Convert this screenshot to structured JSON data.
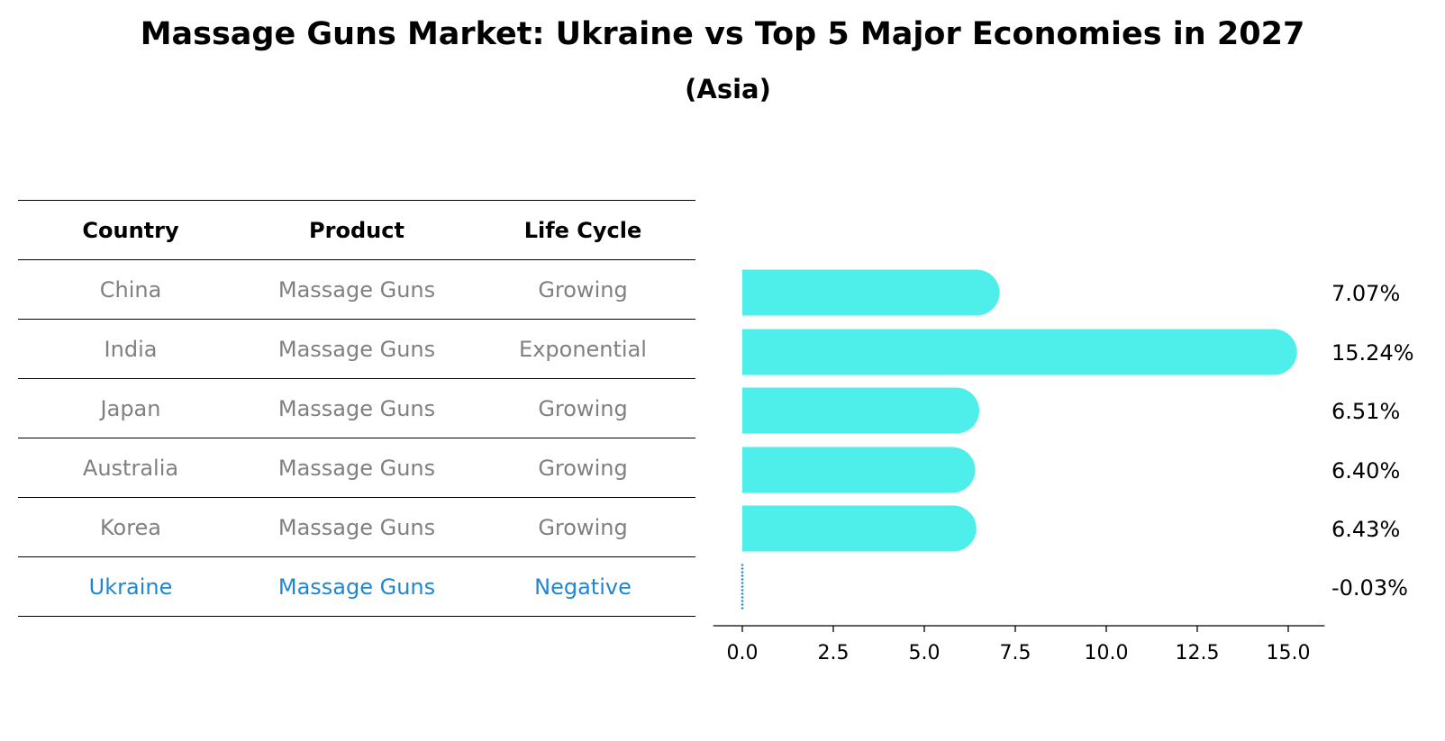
{
  "title": "Massage Guns Market: Ukraine vs Top 5 Major Economies in 2027",
  "subtitle": "(Asia)",
  "colors": {
    "bar": "#4eeeea",
    "highlight": "#1f87d1",
    "muted_text": "#808080"
  },
  "table": {
    "headers": [
      "Country",
      "Product",
      "Life Cycle"
    ],
    "rows": [
      {
        "country": "China",
        "product": "Massage Guns",
        "life_cycle": "Growing"
      },
      {
        "country": "India",
        "product": "Massage Guns",
        "life_cycle": "Exponential"
      },
      {
        "country": "Japan",
        "product": "Massage Guns",
        "life_cycle": "Growing"
      },
      {
        "country": "Australia",
        "product": "Massage Guns",
        "life_cycle": "Growing"
      },
      {
        "country": "Korea",
        "product": "Massage Guns",
        "life_cycle": "Growing"
      },
      {
        "country": "Ukraine",
        "product": "Massage Guns",
        "life_cycle": "Negative"
      }
    ]
  },
  "chart_data": {
    "type": "bar",
    "orientation": "horizontal",
    "categories": [
      "China",
      "India",
      "Japan",
      "Australia",
      "Korea",
      "Ukraine"
    ],
    "values": [
      7.07,
      15.24,
      6.51,
      6.4,
      6.43,
      -0.03
    ],
    "value_labels": [
      "7.07%",
      "15.24%",
      "6.51%",
      "6.40%",
      "6.43%",
      "-0.03%"
    ],
    "xlim": [
      -0.8,
      16.0
    ],
    "xticks": [
      0.0,
      2.5,
      5.0,
      7.5,
      10.0,
      12.5,
      15.0
    ],
    "xtick_labels": [
      "0.0",
      "2.5",
      "5.0",
      "7.5",
      "10.0",
      "12.5",
      "15.0"
    ],
    "xlabel": "",
    "ylabel": "",
    "grid": false
  }
}
